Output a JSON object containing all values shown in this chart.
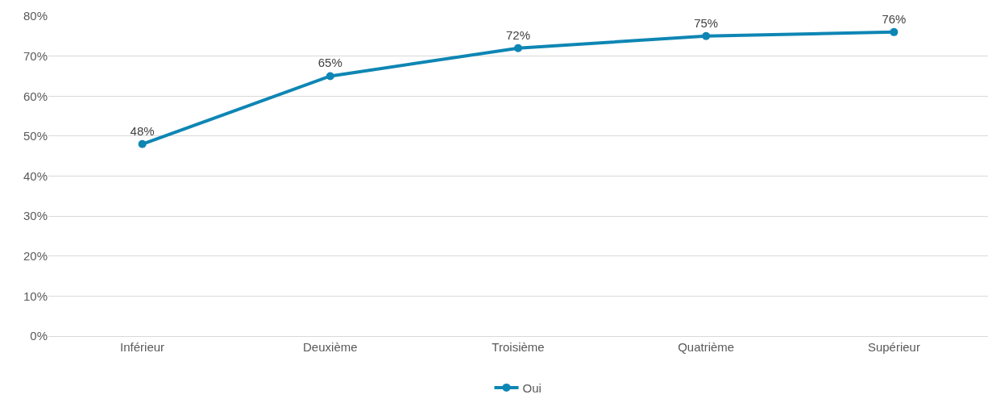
{
  "chart_data": {
    "type": "line",
    "categories": [
      "Inférieur",
      "Deuxième",
      "Troisième",
      "Quatrième",
      "Supérieur"
    ],
    "series": [
      {
        "name": "Oui",
        "color": "#0e86b4",
        "values": [
          48,
          65,
          72,
          75,
          76
        ]
      }
    ],
    "value_labels": [
      "48%",
      "65%",
      "72%",
      "75%",
      "76%"
    ],
    "ylim": [
      0,
      80
    ],
    "yticks": [
      {
        "value": 0,
        "label": "0%"
      },
      {
        "value": 10,
        "label": "10%"
      },
      {
        "value": 20,
        "label": "20%"
      },
      {
        "value": 30,
        "label": "30%"
      },
      {
        "value": 40,
        "label": "40%"
      },
      {
        "value": 50,
        "label": "50%"
      },
      {
        "value": 60,
        "label": "60%"
      },
      {
        "value": 70,
        "label": "70%"
      },
      {
        "value": 80,
        "label": "80%"
      }
    ],
    "grid": "y",
    "legend": "bottom",
    "marker": "circle",
    "line_style": "solid"
  }
}
